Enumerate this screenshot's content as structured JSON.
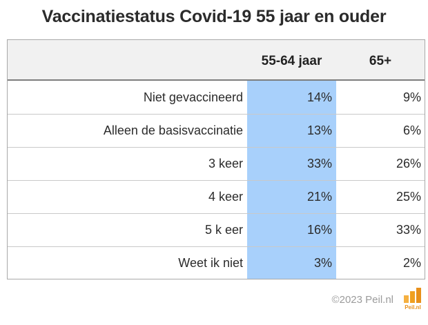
{
  "chart_data": {
    "type": "table",
    "title": "Vaccinatiestatus Covid-19 55 jaar en ouder",
    "columns": [
      "55-64 jaar",
      "65+"
    ],
    "rows": [
      {
        "label": "Niet gevaccineerd",
        "values": [
          "14%",
          "9%"
        ]
      },
      {
        "label": "Alleen de basisvaccinatie",
        "values": [
          "13%",
          "6%"
        ]
      },
      {
        "label": "3 keer",
        "values": [
          "33%",
          "26%"
        ]
      },
      {
        "label": "4 keer",
        "values": [
          "21%",
          "25%"
        ]
      },
      {
        "label": "5 k eer",
        "values": [
          "16%",
          "33%"
        ]
      },
      {
        "label": "Weet ik niet",
        "values": [
          "3%",
          "2%"
        ]
      }
    ],
    "highlight_column": "55-64 jaar",
    "highlight_color": "#a8d0fb"
  },
  "footer": {
    "copyright": "©2023 Peil.nl",
    "logo_text": "Peil.nl",
    "logo_color": "#f0a020"
  }
}
